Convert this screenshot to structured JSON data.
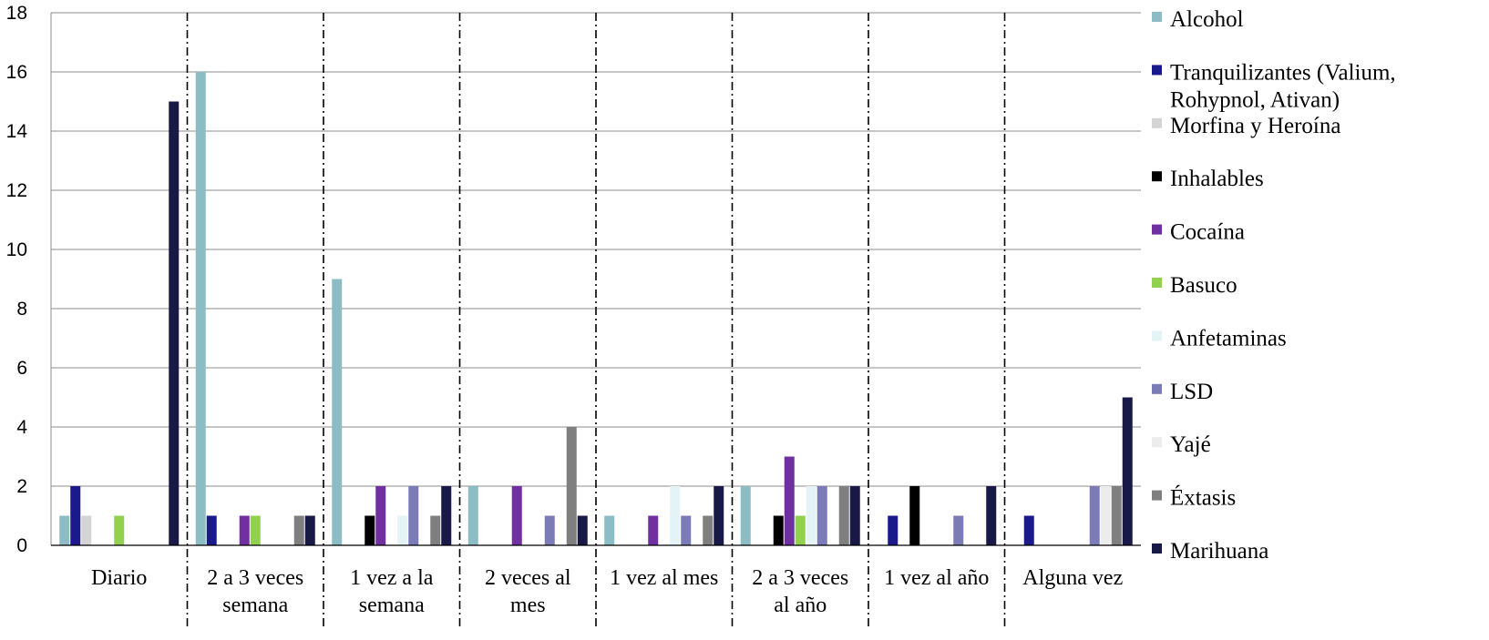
{
  "chart_data": {
    "type": "bar",
    "title": "",
    "xlabel": "",
    "ylabel": "",
    "ylim": [
      0,
      18
    ],
    "yticks": [
      0,
      2,
      4,
      6,
      8,
      10,
      12,
      14,
      16,
      18
    ],
    "grid": true,
    "legend_position": "right",
    "categories": [
      [
        "Diario"
      ],
      [
        "2 a 3 veces",
        "semana"
      ],
      [
        "1 vez a la",
        "semana"
      ],
      [
        "2 veces al",
        "mes"
      ],
      [
        "1 vez al mes"
      ],
      [
        "2 a 3 veces",
        "al año"
      ],
      [
        "1 vez al año"
      ],
      [
        "Alguna vez"
      ]
    ],
    "series": [
      {
        "name": "Alcohol",
        "color": "#8cbcc4",
        "values": [
          1,
          16,
          9,
          2,
          1,
          2,
          0,
          0
        ]
      },
      {
        "name": "Tranquilizantes (Valium, Rohypnol, Ativan)",
        "color": "#1a1a8c",
        "values": [
          2,
          1,
          0,
          0,
          0,
          0,
          1,
          1
        ]
      },
      {
        "name": "Morfina y Heroína",
        "color": "#d4d4d4",
        "values": [
          1,
          0,
          0,
          0,
          0,
          0,
          0,
          0
        ]
      },
      {
        "name": "Inhalables",
        "color": "#000000",
        "values": [
          0,
          0,
          1,
          0,
          0,
          1,
          2,
          0
        ]
      },
      {
        "name": "Cocaína",
        "color": "#7030a0",
        "values": [
          0,
          1,
          2,
          2,
          1,
          3,
          0,
          0
        ]
      },
      {
        "name": "Basuco",
        "color": "#92d050",
        "values": [
          1,
          1,
          0,
          0,
          0,
          1,
          0,
          0
        ]
      },
      {
        "name": "Anfetaminas",
        "color": "#e4f3f5",
        "values": [
          0,
          0,
          1,
          0,
          2,
          2,
          0,
          0
        ]
      },
      {
        "name": "LSD",
        "color": "#7b7bb8",
        "values": [
          0,
          0,
          2,
          1,
          1,
          2,
          1,
          2
        ]
      },
      {
        "name": "Yajé",
        "color": "#ececec",
        "values": [
          0,
          0,
          0,
          0,
          0,
          0,
          0,
          2
        ]
      },
      {
        "name": "Éxtasis",
        "color": "#7f7f7f",
        "values": [
          0,
          1,
          1,
          4,
          1,
          2,
          0,
          2
        ]
      },
      {
        "name": "Marihuana",
        "color": "#191947",
        "values": [
          15,
          1,
          2,
          1,
          2,
          2,
          2,
          5
        ]
      }
    ]
  }
}
